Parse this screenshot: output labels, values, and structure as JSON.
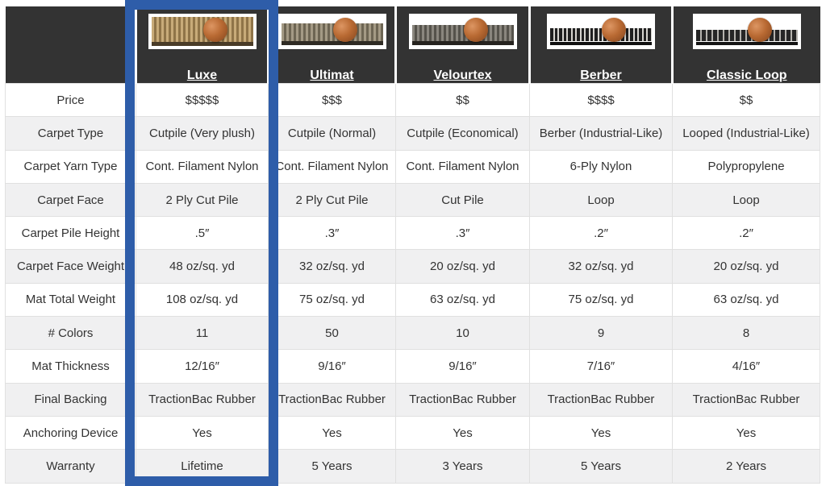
{
  "colors": {
    "header_bg": "#333333",
    "highlight_border": "#2e5da9",
    "row_alt_bg": "#f0f0f1",
    "row_bg": "#ffffff",
    "cell_border": "#e0e0e0",
    "text": "#333333",
    "header_text": "#ffffff",
    "penny": "#b96a33"
  },
  "products": [
    {
      "name": "Luxe",
      "highlighted": true,
      "swatch": {
        "pile_light": "#c8ab79",
        "pile_dark": "#8f7448",
        "base": "#4a3c28"
      }
    },
    {
      "name": "Ultimat",
      "highlighted": false,
      "swatch": {
        "pile_light": "#a49a85",
        "pile_dark": "#6d6553",
        "base": "#2f2b24"
      }
    },
    {
      "name": "Velourtex",
      "highlighted": false,
      "swatch": {
        "pile_light": "#8a867e",
        "pile_dark": "#55524b",
        "base": "#26231f"
      }
    },
    {
      "name": "Berber",
      "highlighted": false,
      "swatch": {
        "pile_light": "#d6d4cf",
        "pile_dark": "#1f1f1f",
        "base": "#111111"
      }
    },
    {
      "name": "Classic Loop",
      "highlighted": false,
      "swatch": {
        "pile_light": "#b5b3ae",
        "pile_dark": "#262626",
        "base": "#151515"
      }
    }
  ],
  "table": {
    "rows": [
      {
        "label": "Price",
        "values": [
          "$$$$$",
          "$$$",
          "$$",
          "$$$$",
          "$$"
        ]
      },
      {
        "label": "Carpet Type",
        "values": [
          "Cutpile (Very plush)",
          "Cutpile (Normal)",
          "Cutpile (Economical)",
          "Berber (Industrial-Like)",
          "Looped (Industrial-Like)"
        ]
      },
      {
        "label": "Carpet Yarn Type",
        "values": [
          "Cont. Filament Nylon",
          "Cont. Filament Nylon",
          "Cont. Filament Nylon",
          "6-Ply Nylon",
          "Polypropylene"
        ]
      },
      {
        "label": "Carpet Face",
        "values": [
          "2 Ply Cut Pile",
          "2 Ply Cut Pile",
          "Cut Pile",
          "Loop",
          "Loop"
        ]
      },
      {
        "label": "Carpet Pile Height",
        "values": [
          ".5″",
          ".3″",
          ".3″",
          ".2″",
          ".2″"
        ]
      },
      {
        "label": "Carpet Face Weight",
        "values": [
          "48 oz/sq. yd",
          "32 oz/sq. yd",
          "20 oz/sq. yd",
          "32 oz/sq. yd",
          "20 oz/sq. yd"
        ]
      },
      {
        "label": "Mat Total Weight",
        "values": [
          "108 oz/sq. yd",
          "75 oz/sq. yd",
          "63 oz/sq. yd",
          "75 oz/sq. yd",
          "63 oz/sq. yd"
        ]
      },
      {
        "label": "# Colors",
        "values": [
          "11",
          "50",
          "10",
          "9",
          "8"
        ]
      },
      {
        "label": "Mat Thickness",
        "values": [
          "12/16″",
          "9/16″",
          "9/16″",
          "7/16″",
          "4/16″"
        ]
      },
      {
        "label": "Final Backing",
        "values": [
          "TractionBac Rubber",
          "TractionBac Rubber",
          "TractionBac Rubber",
          "TractionBac Rubber",
          "TractionBac Rubber"
        ]
      },
      {
        "label": "Anchoring Device",
        "values": [
          "Yes",
          "Yes",
          "Yes",
          "Yes",
          "Yes"
        ]
      },
      {
        "label": "Warranty",
        "values": [
          "Lifetime",
          "5 Years",
          "3 Years",
          "5 Years",
          "2 Years"
        ]
      }
    ]
  }
}
